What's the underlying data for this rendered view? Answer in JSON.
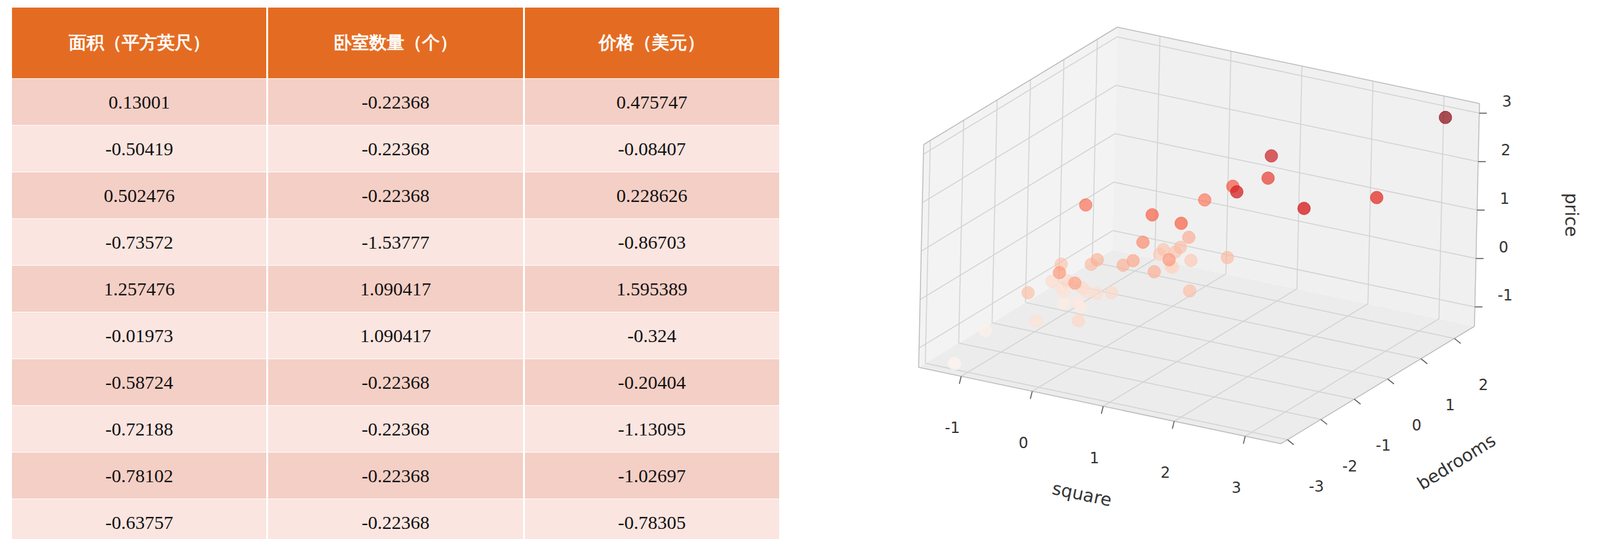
{
  "table": {
    "columns": [
      "面积（平方英尺）",
      "卧室数量（个）",
      "价格（美元）"
    ],
    "rows": [
      [
        0.13001,
        -0.22368,
        0.475747
      ],
      [
        -0.50419,
        -0.22368,
        -0.08407
      ],
      [
        0.502476,
        -0.22368,
        0.228626
      ],
      [
        -0.73572,
        -1.53777,
        -0.86703
      ],
      [
        1.257476,
        1.090417,
        1.595389
      ],
      [
        -0.01973,
        1.090417,
        -0.324
      ],
      [
        -0.58724,
        -0.22368,
        -0.20404
      ],
      [
        -0.72188,
        -0.22368,
        -1.13095
      ],
      [
        -0.78102,
        -0.22368,
        -1.02697
      ],
      [
        -0.63757,
        -0.22368,
        -0.78305
      ]
    ]
  },
  "chart_data": {
    "type": "scatter3d",
    "x_label": "square",
    "y_label": "bedrooms",
    "z_label": "price",
    "x": [
      0.13001,
      -0.50419,
      0.502476,
      -0.73572,
      1.257476,
      -0.01973,
      -0.58724,
      -0.72188,
      -0.78102,
      -0.63757,
      -0.0764,
      -0.0009,
      -0.1393,
      3.1173,
      -0.922,
      0.3766,
      -0.8565,
      -0.9622,
      0.7655,
      1.2965,
      -0.294,
      -0.1418,
      -0.4992,
      -0.0487,
      2.3774,
      -1.1334,
      -0.6829,
      0.661,
      0.2508,
      0.8007,
      -0.2034,
      -1.2592,
      0.0495,
      1.4299,
      -0.2387,
      -0.7093,
      -0.9585,
      0.1652,
      2.7864,
      0.203,
      -0.4237,
      0.2986,
      0.7126,
      -1.0075,
      -1.4454,
      -0.1871,
      -1.0038
    ],
    "y": [
      -0.22368,
      -0.22368,
      -0.22368,
      -1.53777,
      1.090417,
      1.090417,
      -0.22368,
      -0.22368,
      -0.22368,
      -0.22368,
      1.0904,
      -0.2237,
      -0.2237,
      2.4045,
      -0.2237,
      1.0904,
      -1.5378,
      -0.2237,
      1.0904,
      1.0904,
      -0.2237,
      -1.5378,
      -0.2237,
      1.0904,
      -0.2237,
      -0.2237,
      -0.2237,
      -0.2237,
      -0.2237,
      -0.2237,
      -1.5378,
      -2.8518,
      1.0904,
      -0.2237,
      1.0904,
      -0.2237,
      -0.2237,
      1.0904,
      1.0904,
      1.0904,
      -1.5378,
      -0.2237,
      1.0904,
      -0.2237,
      -1.5378,
      1.0904,
      -0.2237
    ],
    "z": [
      0.475747,
      -0.08407,
      0.228626,
      -0.86703,
      1.595389,
      -0.324,
      -0.20404,
      -1.13095,
      -1.02697,
      -0.78305,
      -0.6431,
      0.0527,
      -0.0833,
      2.875,
      -0.6439,
      0.8756,
      -0.324,
      -1.1237,
      1.2763,
      2.068,
      -0.6999,
      -0.6831,
      -0.7798,
      -0.6439,
      1.8673,
      -0.7239,
      0.9924,
      1.0284,
      1.0764,
      -0.324,
      0.0759,
      -1.3637,
      -0.204,
      1.9153,
      -0.436,
      -0.7239,
      -0.8838,
      0.0367,
      1.6682,
      -0.4272,
      0.2246,
      -0.0841,
      -0.2112,
      -0.3312,
      -1.2837,
      -0.324,
      -0.807
    ],
    "xlim": [
      -1.6,
      3.5
    ],
    "ylim": [
      -3.2,
      2.6
    ],
    "zlim": [
      -1.4,
      3.2
    ],
    "xticks": [
      -1,
      0,
      1,
      2,
      3
    ],
    "yticks": [
      -3,
      -2,
      -1,
      0,
      1,
      2
    ],
    "zticks": [
      -1,
      0,
      1,
      2,
      3
    ],
    "grid": true
  }
}
